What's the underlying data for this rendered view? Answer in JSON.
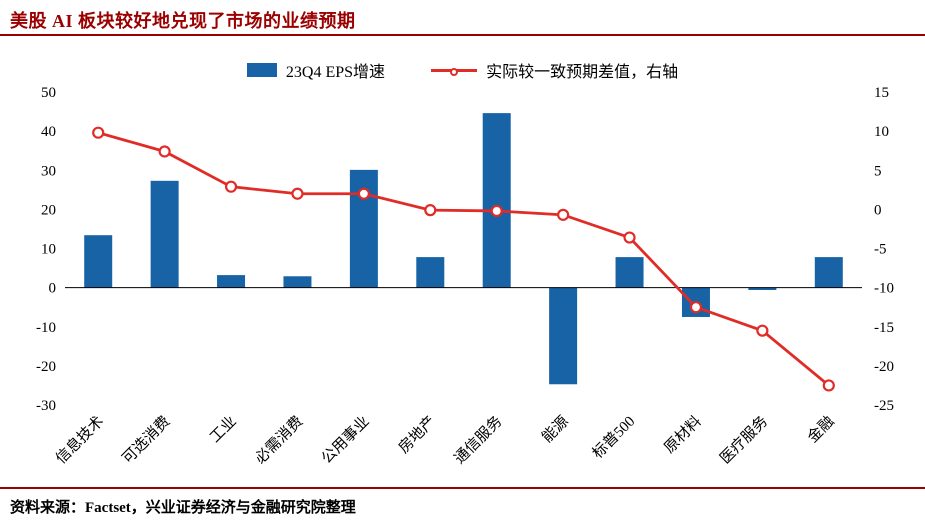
{
  "page": {
    "title": "美股 AI 板块较好地兑现了市场的业绩预期",
    "source_note": "资料来源：Factset，兴业证券经济与金融研究院整理"
  },
  "colors": {
    "title_red": "#9a0000",
    "bar_blue": "#1763a6",
    "line_red": "#e12b26"
  },
  "chart_data": {
    "type": "bar",
    "subtype": "bar+line-dual-axis",
    "title": "美股 AI 板块较好地兑现了市场的业绩预期",
    "categories": [
      "信息技术",
      "可选消费",
      "工业",
      "必需消费",
      "公用事业",
      "房地产",
      "通信服务",
      "能源",
      "标普500",
      "原材料",
      "医疗服务",
      "金融"
    ],
    "series": [
      {
        "name": "23Q4 EPS增速",
        "type": "bar",
        "axis": "left",
        "color": "#1763a6",
        "values": [
          13.4,
          27.3,
          3.2,
          2.9,
          30.1,
          7.8,
          44.6,
          -24.7,
          7.8,
          -7.5,
          -0.6,
          7.8
        ]
      },
      {
        "name": "实际较一致预期差值，右轴",
        "type": "line",
        "axis": "right",
        "color": "#e12b26",
        "marker": "open-circle",
        "values": [
          9.8,
          7.4,
          2.9,
          2.0,
          2.0,
          -0.1,
          -0.2,
          -0.7,
          -3.6,
          -12.5,
          -15.5,
          -22.5
        ]
      }
    ],
    "left_axis": {
      "min": -30,
      "max": 50,
      "ticks": [
        50,
        40,
        30,
        20,
        10,
        0,
        -10,
        -20,
        -30
      ]
    },
    "right_axis": {
      "min": -25,
      "max": 15,
      "ticks": [
        15,
        10,
        5,
        0,
        -5,
        -10,
        -15,
        -20,
        -25
      ]
    },
    "legend_position": "top-center",
    "grid": false
  }
}
